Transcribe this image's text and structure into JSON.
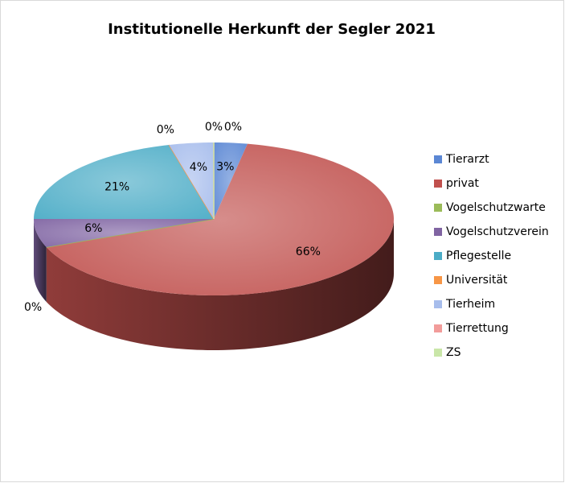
{
  "chart_data": {
    "type": "pie3d",
    "title": "Institutionelle Herkunft der Segler 2021",
    "categories": [
      "Tierarzt",
      "privat",
      "Vogelschutzwarte",
      "Vogelschutzverein",
      "Pflegestelle",
      "Universität",
      "Tierheim",
      "Tierrettung",
      "ZS"
    ],
    "values": [
      3,
      66,
      0,
      6,
      21,
      0,
      4,
      0,
      0
    ],
    "value_labels": [
      "3%",
      "66%",
      "0%",
      "6%",
      "21%",
      "0%",
      "4%",
      "0%",
      "0%"
    ],
    "colors": [
      "#5b87d4",
      "#c0504d",
      "#9bbb59",
      "#8064a2",
      "#4bacc6",
      "#f79646",
      "#a7bdec",
      "#f29c9a",
      "#c9e6a8"
    ],
    "legend": "right"
  }
}
